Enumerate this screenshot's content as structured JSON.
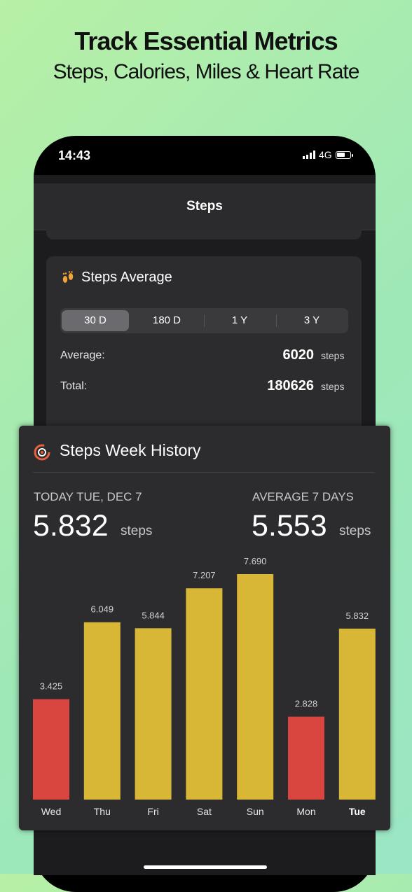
{
  "promo": {
    "title": "Track Essential Metrics",
    "subtitle": "Steps, Calories, Miles & Heart Rate"
  },
  "status_bar": {
    "time": "14:43",
    "network": "4G"
  },
  "nav": {
    "title": "Steps"
  },
  "steps_average": {
    "title": "Steps Average",
    "segments": [
      "30 D",
      "180 D",
      "1 Y",
      "3 Y"
    ],
    "selected_segment": "30 D",
    "rows": [
      {
        "label": "Average:",
        "value": "6020",
        "unit": "steps"
      },
      {
        "label": "Total:",
        "value": "180626",
        "unit": "steps"
      }
    ]
  },
  "week_history": {
    "title": "Steps Week History",
    "today_label": "TODAY TUE, DEC 7",
    "today_value": "5.832",
    "today_unit": "steps",
    "average_label": "AVERAGE 7 DAYS",
    "average_value": "5.553",
    "average_unit": "steps"
  },
  "colors": {
    "above_goal": "#d9b736",
    "below_goal": "#d9463f",
    "card": "#2c2c2e"
  },
  "chart_data": {
    "type": "bar",
    "categories": [
      "Wed",
      "Thu",
      "Fri",
      "Sat",
      "Sun",
      "Mon",
      "Tue"
    ],
    "values": [
      3425,
      6049,
      5844,
      7207,
      7690,
      2828,
      5832
    ],
    "labels": [
      "3.425",
      "6.049",
      "5.844",
      "7.207",
      "7.690",
      "2.828",
      "5.832"
    ],
    "bar_colors": [
      "#d9463f",
      "#d9b736",
      "#d9b736",
      "#d9b736",
      "#d9b736",
      "#d9463f",
      "#d9b736"
    ],
    "highlighted_category": "Tue",
    "ylim": [
      0,
      7690
    ]
  }
}
